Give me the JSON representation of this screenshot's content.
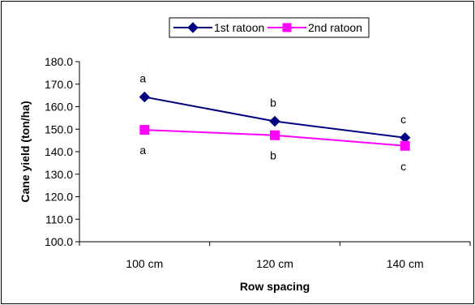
{
  "chart_data": {
    "type": "line",
    "categories": [
      "100 cm",
      "120 cm",
      "140 cm"
    ],
    "series": [
      {
        "name": "1st ratoon",
        "values": [
          164.3,
          153.5,
          146.2
        ],
        "color": "#000080",
        "marker": "diamond",
        "labels": [
          "a",
          "b",
          "c"
        ]
      },
      {
        "name": "2nd ratoon",
        "values": [
          149.7,
          147.3,
          142.6
        ],
        "color": "#ff00ff",
        "marker": "square",
        "labels": [
          "a",
          "b",
          "c"
        ]
      }
    ],
    "xlabel": "Row spacing",
    "ylabel": "Cane yield (ton/ha)",
    "ylim": [
      100,
      180
    ],
    "yticks": [
      "100.0",
      "110.0",
      "120.0",
      "130.0",
      "140.0",
      "150.0",
      "160.0",
      "170.0",
      "180.0"
    ],
    "grid": false,
    "legend_position": "top"
  }
}
